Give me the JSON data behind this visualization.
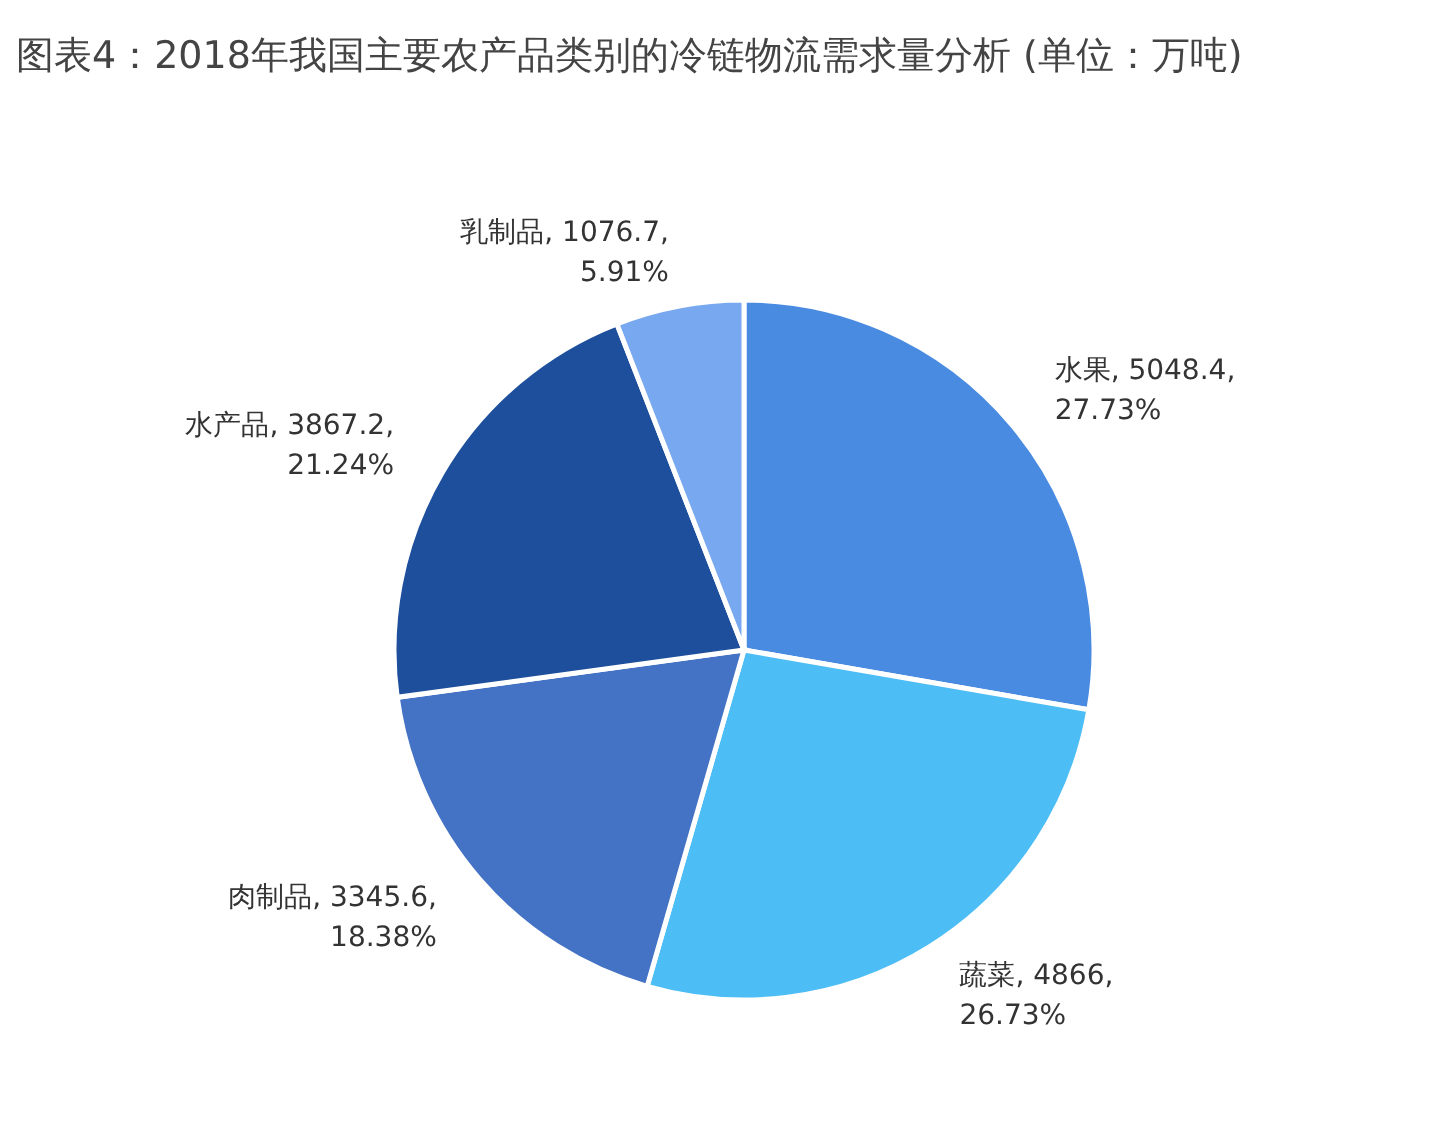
{
  "chart_data": {
    "type": "pie",
    "title": "图表4：2018年我国主要农产品类别的冷链物流需求量分析 (单位：万吨)",
    "categories": [
      "水果",
      "蔬菜",
      "肉制品",
      "水产品",
      "乳制品"
    ],
    "values": [
      5048.4,
      4866,
      3345.6,
      3867.2,
      1076.7
    ],
    "value_labels": [
      "5048.4,\n27.73%",
      "4866,\n26.73%",
      "3345.6,\n18.38%",
      "3867.2,\n21.24%",
      "1076.7,\n5.91%"
    ],
    "colors": [
      "#4a8be2",
      "#4dbdf5",
      "#4472c4",
      "#1d4f9c",
      "#78a8ef"
    ]
  }
}
